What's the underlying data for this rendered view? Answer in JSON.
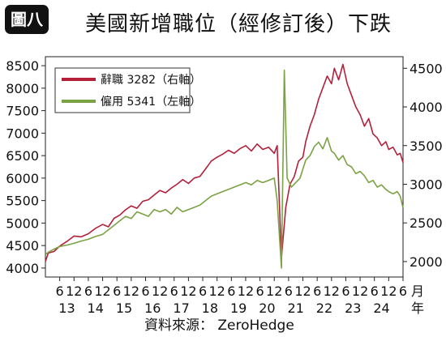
{
  "badge": "圖八",
  "title": "美國新增職位（經修訂後）下跌",
  "source": "資料來源： ZeroHedge",
  "chart_data": {
    "type": "line",
    "title": "美國新增職位（經修訂後）下跌",
    "grid": false,
    "legend_position": "top-left",
    "y_left": {
      "ticks": [
        4000,
        4500,
        5000,
        5500,
        6000,
        6500,
        7000,
        7500,
        8000,
        8500
      ],
      "tick_labels": [
        "4000",
        "4500",
        "5000",
        "5500",
        "6000",
        "6500",
        "7000",
        "7500",
        "8000",
        "8500"
      ],
      "range": [
        3800,
        8700
      ]
    },
    "y_right": {
      "ticks": [
        2000,
        2500,
        3000,
        3500,
        4000,
        4500
      ],
      "tick_labels": [
        "2000",
        "2500",
        "3000",
        "3500",
        "4000",
        "4500"
      ],
      "range": [
        1800,
        4650
      ]
    },
    "x_axis": {
      "range": [
        2012.0,
        2024.5
      ],
      "month_ticks": [
        {
          "x": 2012.5,
          "label": "6"
        },
        {
          "x": 2013.0,
          "label": "12"
        },
        {
          "x": 2013.5,
          "label": "6"
        },
        {
          "x": 2014.0,
          "label": "12"
        },
        {
          "x": 2014.5,
          "label": "6"
        },
        {
          "x": 2015.0,
          "label": "12"
        },
        {
          "x": 2015.5,
          "label": "6"
        },
        {
          "x": 2016.0,
          "label": "12"
        },
        {
          "x": 2016.5,
          "label": "6"
        },
        {
          "x": 2017.0,
          "label": "12"
        },
        {
          "x": 2017.5,
          "label": "6"
        },
        {
          "x": 2018.0,
          "label": "12"
        },
        {
          "x": 2018.5,
          "label": "6"
        },
        {
          "x": 2019.0,
          "label": "12"
        },
        {
          "x": 2019.5,
          "label": "6"
        },
        {
          "x": 2020.0,
          "label": "12"
        },
        {
          "x": 2020.5,
          "label": "6"
        },
        {
          "x": 2021.0,
          "label": "12"
        },
        {
          "x": 2021.5,
          "label": "6"
        },
        {
          "x": 2022.0,
          "label": "12"
        },
        {
          "x": 2022.5,
          "label": "6"
        },
        {
          "x": 2023.0,
          "label": "12"
        },
        {
          "x": 2023.5,
          "label": "6"
        },
        {
          "x": 2024.0,
          "label": "12"
        },
        {
          "x": 2024.5,
          "label": "6"
        }
      ],
      "year_labels": [
        {
          "x": 2012.75,
          "label": "13"
        },
        {
          "x": 2013.75,
          "label": "14"
        },
        {
          "x": 2014.75,
          "label": "15"
        },
        {
          "x": 2015.75,
          "label": "16"
        },
        {
          "x": 2016.75,
          "label": "17"
        },
        {
          "x": 2017.75,
          "label": "18"
        },
        {
          "x": 2018.75,
          "label": "19"
        },
        {
          "x": 2019.75,
          "label": "20"
        },
        {
          "x": 2020.75,
          "label": "21"
        },
        {
          "x": 2021.75,
          "label": "22"
        },
        {
          "x": 2022.75,
          "label": "23"
        },
        {
          "x": 2023.75,
          "label": "24"
        }
      ],
      "unit_month": "月",
      "unit_year": "年"
    },
    "series": [
      {
        "name": "辭職 3282（右軸）",
        "axis": "right",
        "color": "#b4203a",
        "points": [
          [
            2012.0,
            2000
          ],
          [
            2012.1,
            2110
          ],
          [
            2012.3,
            2130
          ],
          [
            2012.5,
            2200
          ],
          [
            2012.75,
            2260
          ],
          [
            2013.0,
            2330
          ],
          [
            2013.25,
            2320
          ],
          [
            2013.5,
            2360
          ],
          [
            2013.75,
            2430
          ],
          [
            2014.0,
            2480
          ],
          [
            2014.2,
            2450
          ],
          [
            2014.4,
            2560
          ],
          [
            2014.6,
            2600
          ],
          [
            2014.8,
            2670
          ],
          [
            2015.0,
            2720
          ],
          [
            2015.2,
            2690
          ],
          [
            2015.4,
            2780
          ],
          [
            2015.6,
            2800
          ],
          [
            2015.8,
            2860
          ],
          [
            2016.0,
            2920
          ],
          [
            2016.2,
            2890
          ],
          [
            2016.4,
            2950
          ],
          [
            2016.6,
            3000
          ],
          [
            2016.8,
            3060
          ],
          [
            2017.0,
            3010
          ],
          [
            2017.2,
            3080
          ],
          [
            2017.4,
            3100
          ],
          [
            2017.6,
            3200
          ],
          [
            2017.8,
            3300
          ],
          [
            2018.0,
            3350
          ],
          [
            2018.2,
            3390
          ],
          [
            2018.4,
            3440
          ],
          [
            2018.6,
            3400
          ],
          [
            2018.8,
            3460
          ],
          [
            2019.0,
            3500
          ],
          [
            2019.2,
            3430
          ],
          [
            2019.4,
            3520
          ],
          [
            2019.6,
            3450
          ],
          [
            2019.8,
            3480
          ],
          [
            2020.0,
            3400
          ],
          [
            2020.1,
            3500
          ],
          [
            2020.25,
            2050
          ],
          [
            2020.4,
            2700
          ],
          [
            2020.55,
            3000
          ],
          [
            2020.7,
            3100
          ],
          [
            2020.85,
            3300
          ],
          [
            2021.0,
            3350
          ],
          [
            2021.1,
            3550
          ],
          [
            2021.25,
            3750
          ],
          [
            2021.4,
            3900
          ],
          [
            2021.55,
            4100
          ],
          [
            2021.7,
            4250
          ],
          [
            2021.85,
            4400
          ],
          [
            2022.0,
            4300
          ],
          [
            2022.1,
            4500
          ],
          [
            2022.25,
            4350
          ],
          [
            2022.4,
            4550
          ],
          [
            2022.55,
            4300
          ],
          [
            2022.7,
            4150
          ],
          [
            2022.85,
            4000
          ],
          [
            2023.0,
            3900
          ],
          [
            2023.15,
            3750
          ],
          [
            2023.3,
            3850
          ],
          [
            2023.45,
            3650
          ],
          [
            2023.6,
            3600
          ],
          [
            2023.75,
            3500
          ],
          [
            2023.9,
            3550
          ],
          [
            2024.0,
            3450
          ],
          [
            2024.15,
            3480
          ],
          [
            2024.3,
            3380
          ],
          [
            2024.4,
            3400
          ],
          [
            2024.5,
            3282
          ]
        ]
      },
      {
        "name": "僱用 5341（左軸）",
        "axis": "left",
        "color": "#7ba244",
        "points": [
          [
            2012.0,
            4300
          ],
          [
            2012.1,
            4350
          ],
          [
            2012.3,
            4420
          ],
          [
            2012.5,
            4480
          ],
          [
            2012.75,
            4510
          ],
          [
            2013.0,
            4550
          ],
          [
            2013.25,
            4600
          ],
          [
            2013.5,
            4640
          ],
          [
            2013.75,
            4700
          ],
          [
            2014.0,
            4750
          ],
          [
            2014.2,
            4850
          ],
          [
            2014.4,
            4950
          ],
          [
            2014.6,
            5050
          ],
          [
            2014.8,
            5150
          ],
          [
            2015.0,
            5100
          ],
          [
            2015.2,
            5250
          ],
          [
            2015.4,
            5200
          ],
          [
            2015.6,
            5150
          ],
          [
            2015.8,
            5300
          ],
          [
            2016.0,
            5250
          ],
          [
            2016.2,
            5300
          ],
          [
            2016.4,
            5200
          ],
          [
            2016.6,
            5350
          ],
          [
            2016.8,
            5250
          ],
          [
            2017.0,
            5300
          ],
          [
            2017.2,
            5350
          ],
          [
            2017.4,
            5400
          ],
          [
            2017.6,
            5500
          ],
          [
            2017.8,
            5600
          ],
          [
            2018.0,
            5650
          ],
          [
            2018.2,
            5700
          ],
          [
            2018.4,
            5750
          ],
          [
            2018.6,
            5800
          ],
          [
            2018.8,
            5850
          ],
          [
            2019.0,
            5900
          ],
          [
            2019.2,
            5850
          ],
          [
            2019.4,
            5950
          ],
          [
            2019.6,
            5900
          ],
          [
            2019.8,
            5950
          ],
          [
            2020.0,
            6000
          ],
          [
            2020.1,
            5500
          ],
          [
            2020.25,
            4000
          ],
          [
            2020.35,
            8400
          ],
          [
            2020.45,
            6000
          ],
          [
            2020.6,
            5800
          ],
          [
            2020.75,
            5900
          ],
          [
            2020.9,
            6000
          ],
          [
            2021.0,
            6200
          ],
          [
            2021.1,
            6400
          ],
          [
            2021.25,
            6500
          ],
          [
            2021.4,
            6700
          ],
          [
            2021.55,
            6800
          ],
          [
            2021.7,
            6650
          ],
          [
            2021.85,
            6900
          ],
          [
            2022.0,
            6600
          ],
          [
            2022.1,
            6550
          ],
          [
            2022.25,
            6400
          ],
          [
            2022.4,
            6500
          ],
          [
            2022.55,
            6300
          ],
          [
            2022.7,
            6250
          ],
          [
            2022.85,
            6100
          ],
          [
            2023.0,
            6150
          ],
          [
            2023.15,
            6050
          ],
          [
            2023.3,
            5900
          ],
          [
            2023.45,
            5950
          ],
          [
            2023.6,
            5800
          ],
          [
            2023.75,
            5850
          ],
          [
            2023.9,
            5750
          ],
          [
            2024.0,
            5700
          ],
          [
            2024.15,
            5650
          ],
          [
            2024.3,
            5700
          ],
          [
            2024.4,
            5600
          ],
          [
            2024.5,
            5341
          ]
        ]
      }
    ]
  }
}
